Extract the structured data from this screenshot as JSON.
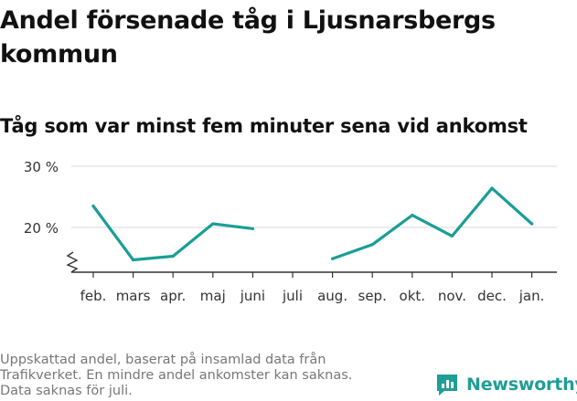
{
  "title": "Andel försenade tåg i Ljusnarsbergs kommun",
  "subtitle": "Tåg som var minst fem minuter sena vid ankomst",
  "footnote": [
    "Uppskattad andel, baserat på insamlad data från",
    "Trafikverket. En mindre andel ankomster kan saknas.",
    "Data saknas för juli."
  ],
  "brand": {
    "name": "Newsworthy",
    "icon": "newsworthy-logo-icon",
    "color": "#1f9e96"
  },
  "chart_data": {
    "type": "line",
    "categories": [
      "feb.",
      "mars",
      "apr.",
      "maj",
      "juni",
      "juli",
      "aug.",
      "sep.",
      "okt.",
      "nov.",
      "dec.",
      "jan."
    ],
    "series": [
      {
        "values": [
          23.5,
          14.7,
          15.3,
          20.6,
          19.8,
          null,
          14.9,
          17.2,
          22.0,
          18.6,
          26.4,
          20.6
        ],
        "color": "#1a9e96"
      }
    ],
    "y_ticks": [
      {
        "value": 20,
        "label": "20 %"
      },
      {
        "value": 30,
        "label": "30 %"
      }
    ],
    "ylim": [
      13,
      30
    ],
    "y_axis_break": true,
    "grid": true,
    "xlabel": "",
    "ylabel": ""
  }
}
